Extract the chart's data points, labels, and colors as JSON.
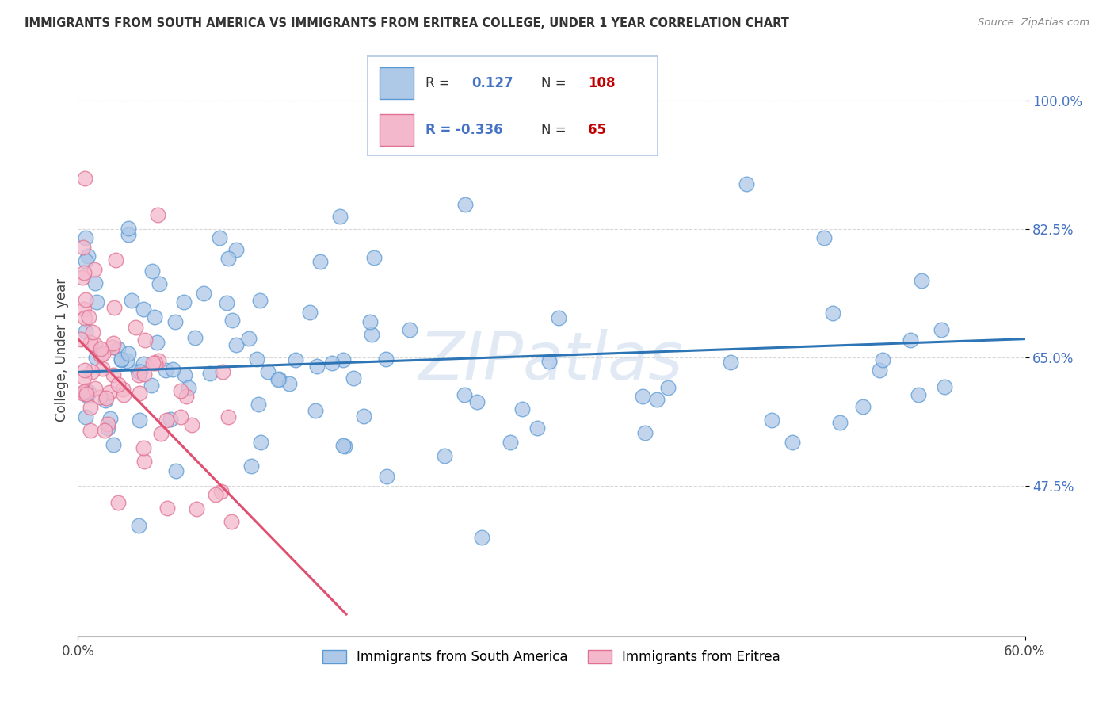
{
  "title": "IMMIGRANTS FROM SOUTH AMERICA VS IMMIGRANTS FROM ERITREA COLLEGE, UNDER 1 YEAR CORRELATION CHART",
  "source": "Source: ZipAtlas.com",
  "ylabel": "College, Under 1 year",
  "xlim": [
    0.0,
    60.0
  ],
  "ylim": [
    27.0,
    105.0
  ],
  "ytick_vals": [
    100.0,
    82.5,
    65.0,
    47.5
  ],
  "ytick_labels": [
    "100.0%",
    "82.5%",
    "65.0%",
    "47.5%"
  ],
  "color_blue_fill": "#aec8e8",
  "color_blue_edge": "#5b9bd5",
  "color_blue_line": "#2e75b6",
  "color_pink_fill": "#f4b8cc",
  "color_pink_edge": "#e07090",
  "color_pink_line": "#e05070",
  "watermark": "ZIPatlas",
  "blue_line_x0": 0.0,
  "blue_line_y0": 63.0,
  "blue_line_x1": 60.0,
  "blue_line_y1": 67.5,
  "pink_line_x0": 0.0,
  "pink_line_y0": 67.5,
  "pink_line_x1": 17.0,
  "pink_line_y1": 30.0,
  "legend_box_color": "#e8f0fb",
  "legend_border_color": "#9bbde0"
}
